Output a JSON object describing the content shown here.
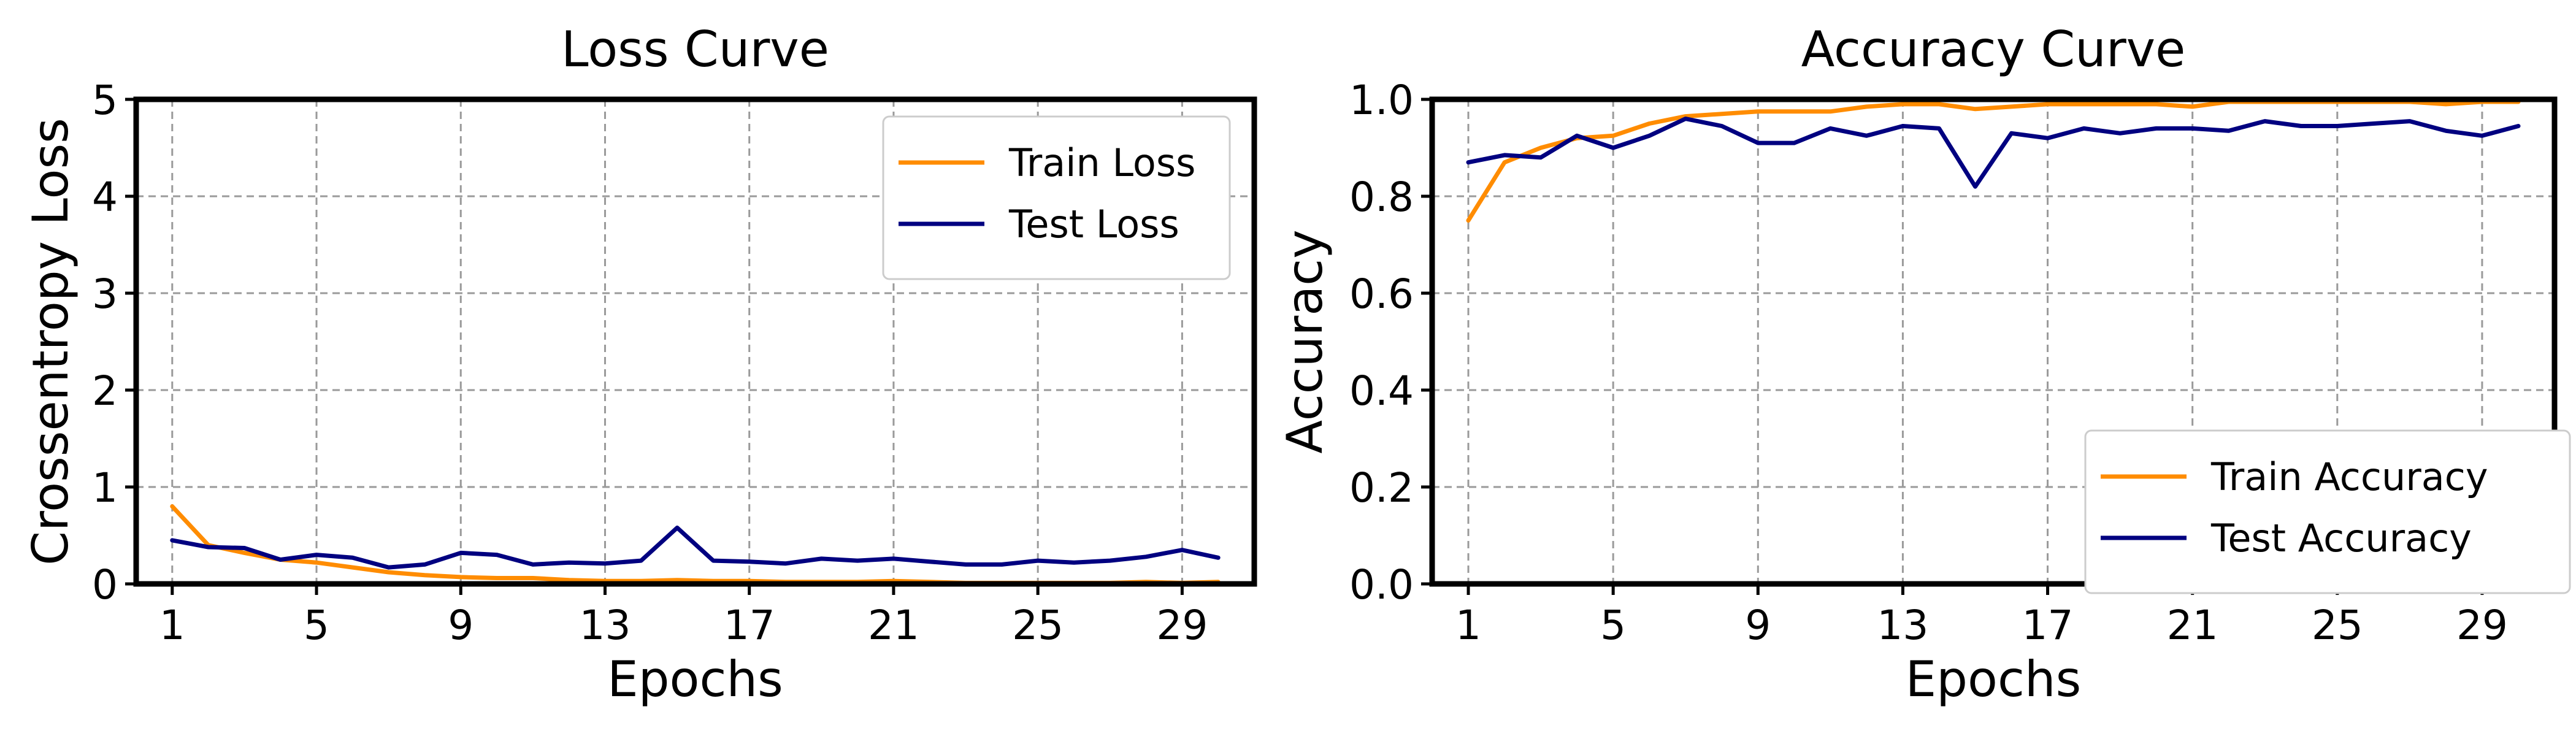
{
  "chart_data": [
    {
      "type": "line",
      "title": "Loss Curve",
      "xlabel": "Epochs",
      "ylabel": "Crossentropy Loss",
      "xlim": [
        0,
        31
      ],
      "ylim": [
        0,
        5
      ],
      "x": [
        1,
        2,
        3,
        4,
        5,
        6,
        7,
        8,
        9,
        10,
        11,
        12,
        13,
        14,
        15,
        16,
        17,
        18,
        19,
        20,
        21,
        22,
        23,
        24,
        25,
        26,
        27,
        28,
        29,
        30
      ],
      "xticks": [
        1,
        5,
        9,
        13,
        17,
        21,
        25,
        29
      ],
      "xtick_labels": [
        "1",
        "5",
        "9",
        "13",
        "17",
        "21",
        "25",
        "29"
      ],
      "yticks": [
        0,
        1,
        2,
        3,
        4,
        5
      ],
      "ytick_labels": [
        "0",
        "1",
        "2",
        "3",
        "4",
        "5"
      ],
      "grid": true,
      "legend_position": "top-right",
      "series": [
        {
          "name": "Train Loss",
          "color": "#ff8c00",
          "values": [
            0.8,
            0.4,
            0.32,
            0.25,
            0.22,
            0.17,
            0.12,
            0.09,
            0.07,
            0.06,
            0.06,
            0.04,
            0.03,
            0.03,
            0.04,
            0.03,
            0.03,
            0.02,
            0.02,
            0.02,
            0.03,
            0.02,
            0.01,
            0.01,
            0.01,
            0.01,
            0.01,
            0.02,
            0.01,
            0.02
          ]
        },
        {
          "name": "Test Loss",
          "color": "#000080",
          "values": [
            0.45,
            0.38,
            0.37,
            0.25,
            0.3,
            0.27,
            0.17,
            0.2,
            0.32,
            0.3,
            0.2,
            0.22,
            0.21,
            0.24,
            0.58,
            0.24,
            0.23,
            0.21,
            0.26,
            0.24,
            0.26,
            0.23,
            0.2,
            0.2,
            0.24,
            0.22,
            0.24,
            0.28,
            0.35,
            0.27
          ]
        }
      ]
    },
    {
      "type": "line",
      "title": "Accuracy Curve",
      "xlabel": "Epochs",
      "ylabel": "Accuracy",
      "xlim": [
        0,
        31
      ],
      "ylim": [
        0,
        1
      ],
      "x": [
        1,
        2,
        3,
        4,
        5,
        6,
        7,
        8,
        9,
        10,
        11,
        12,
        13,
        14,
        15,
        16,
        17,
        18,
        19,
        20,
        21,
        22,
        23,
        24,
        25,
        26,
        27,
        28,
        29,
        30
      ],
      "xticks": [
        1,
        5,
        9,
        13,
        17,
        21,
        25,
        29
      ],
      "xtick_labels": [
        "1",
        "5",
        "9",
        "13",
        "17",
        "21",
        "25",
        "29"
      ],
      "yticks": [
        0,
        0.2,
        0.4,
        0.6,
        0.8,
        1.0
      ],
      "ytick_labels": [
        "0.0",
        "0.2",
        "0.4",
        "0.6",
        "0.8",
        "1.0"
      ],
      "grid": true,
      "legend_position": "bottom-right",
      "series": [
        {
          "name": "Train Accuracy",
          "color": "#ff8c00",
          "values": [
            0.75,
            0.87,
            0.9,
            0.92,
            0.925,
            0.95,
            0.965,
            0.97,
            0.975,
            0.975,
            0.975,
            0.985,
            0.99,
            0.99,
            0.98,
            0.985,
            0.99,
            0.99,
            0.99,
            0.99,
            0.985,
            0.995,
            0.995,
            0.995,
            0.995,
            0.995,
            0.995,
            0.99,
            0.995,
            0.995
          ]
        },
        {
          "name": "Test Accuracy",
          "color": "#000080",
          "values": [
            0.87,
            0.885,
            0.88,
            0.925,
            0.9,
            0.925,
            0.96,
            0.945,
            0.91,
            0.91,
            0.94,
            0.925,
            0.945,
            0.94,
            0.82,
            0.93,
            0.92,
            0.94,
            0.93,
            0.94,
            0.94,
            0.935,
            0.955,
            0.945,
            0.945,
            0.95,
            0.955,
            0.935,
            0.925,
            0.945
          ]
        }
      ]
    }
  ]
}
